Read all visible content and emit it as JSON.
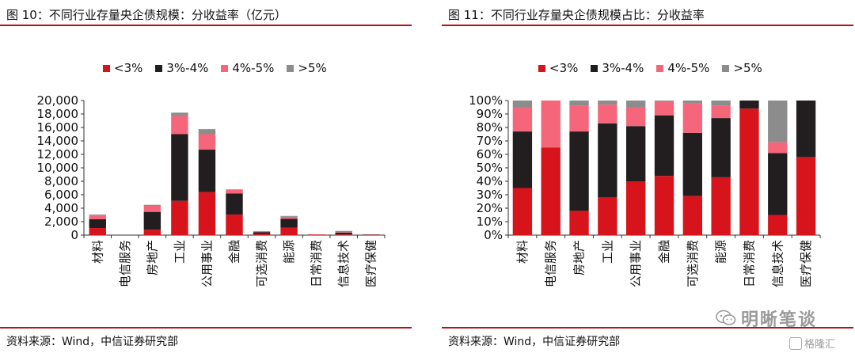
{
  "left": {
    "title": "图 10：不同行业存量央企债规模：分收益率（亿元）",
    "source": "资料来源：Wind，中信证券研究部"
  },
  "right": {
    "title": "图 11：不同行业存量央企债规模占比：分收益率",
    "source": "资料来源：Wind，中信证券研究部"
  },
  "watermark": {
    "text": "明晰笔谈",
    "icon": "wechat-chat-icon"
  },
  "logo": {
    "text": "格隆汇",
    "icon": "gelonghui-logo-icon"
  },
  "chart_data": [
    {
      "type": "bar",
      "stacked": true,
      "categories": [
        "材料",
        "电信服务",
        "房地产",
        "工业",
        "公用事业",
        "金融",
        "可选消费",
        "能源",
        "日常消费",
        "信息技术",
        "医疗保健"
      ],
      "series": [
        {
          "name": "<3%",
          "color": "#d7141b",
          "values": [
            1050,
            0,
            800,
            5100,
            6400,
            3050,
            180,
            1100,
            90,
            100,
            50
          ]
        },
        {
          "name": "3%-4%",
          "color": "#221e1f",
          "values": [
            1300,
            0,
            2650,
            9900,
            6300,
            3150,
            270,
            1330,
            5,
            280,
            40
          ]
        },
        {
          "name": "4%-5%",
          "color": "#f5667a",
          "values": [
            550,
            0,
            900,
            2700,
            2300,
            550,
            130,
            300,
            0,
            50,
            0
          ]
        },
        {
          "name": ">5%",
          "color": "#8c8c8c",
          "values": [
            150,
            0,
            150,
            500,
            750,
            50,
            20,
            120,
            0,
            190,
            0
          ]
        }
      ],
      "ylim": [
        0,
        20000
      ],
      "yticks": [
        "0",
        "2,000",
        "4,000",
        "6,000",
        "8,000",
        "10,000",
        "12,000",
        "14,000",
        "16,000",
        "18,000",
        "20,000"
      ],
      "legend": "top"
    },
    {
      "type": "bar",
      "stacked": true,
      "categories": [
        "材料",
        "电信服务",
        "房地产",
        "工业",
        "公用事业",
        "金融",
        "可选消费",
        "能源",
        "日常消费",
        "信息技术",
        "医疗保健"
      ],
      "series": [
        {
          "name": "<3%",
          "color": "#d7141b",
          "values": [
            35,
            65,
            18,
            28,
            40,
            44,
            29,
            43,
            94,
            15,
            58
          ]
        },
        {
          "name": "3%-4%",
          "color": "#221e1f",
          "values": [
            42,
            0,
            59,
            55,
            41,
            45,
            47,
            44,
            6,
            46,
            42
          ]
        },
        {
          "name": "4%-5%",
          "color": "#f5667a",
          "values": [
            18,
            35,
            19,
            14,
            14,
            10,
            22,
            9,
            0,
            8,
            0
          ]
        },
        {
          "name": ">5%",
          "color": "#8c8c8c",
          "values": [
            5,
            0,
            4,
            3,
            5,
            1,
            2,
            4,
            0,
            31,
            0
          ]
        }
      ],
      "ylim": [
        0,
        100
      ],
      "yticks": [
        "0%",
        "10%",
        "20%",
        "30%",
        "40%",
        "50%",
        "60%",
        "70%",
        "80%",
        "90%",
        "100%"
      ],
      "legend": "top"
    }
  ]
}
